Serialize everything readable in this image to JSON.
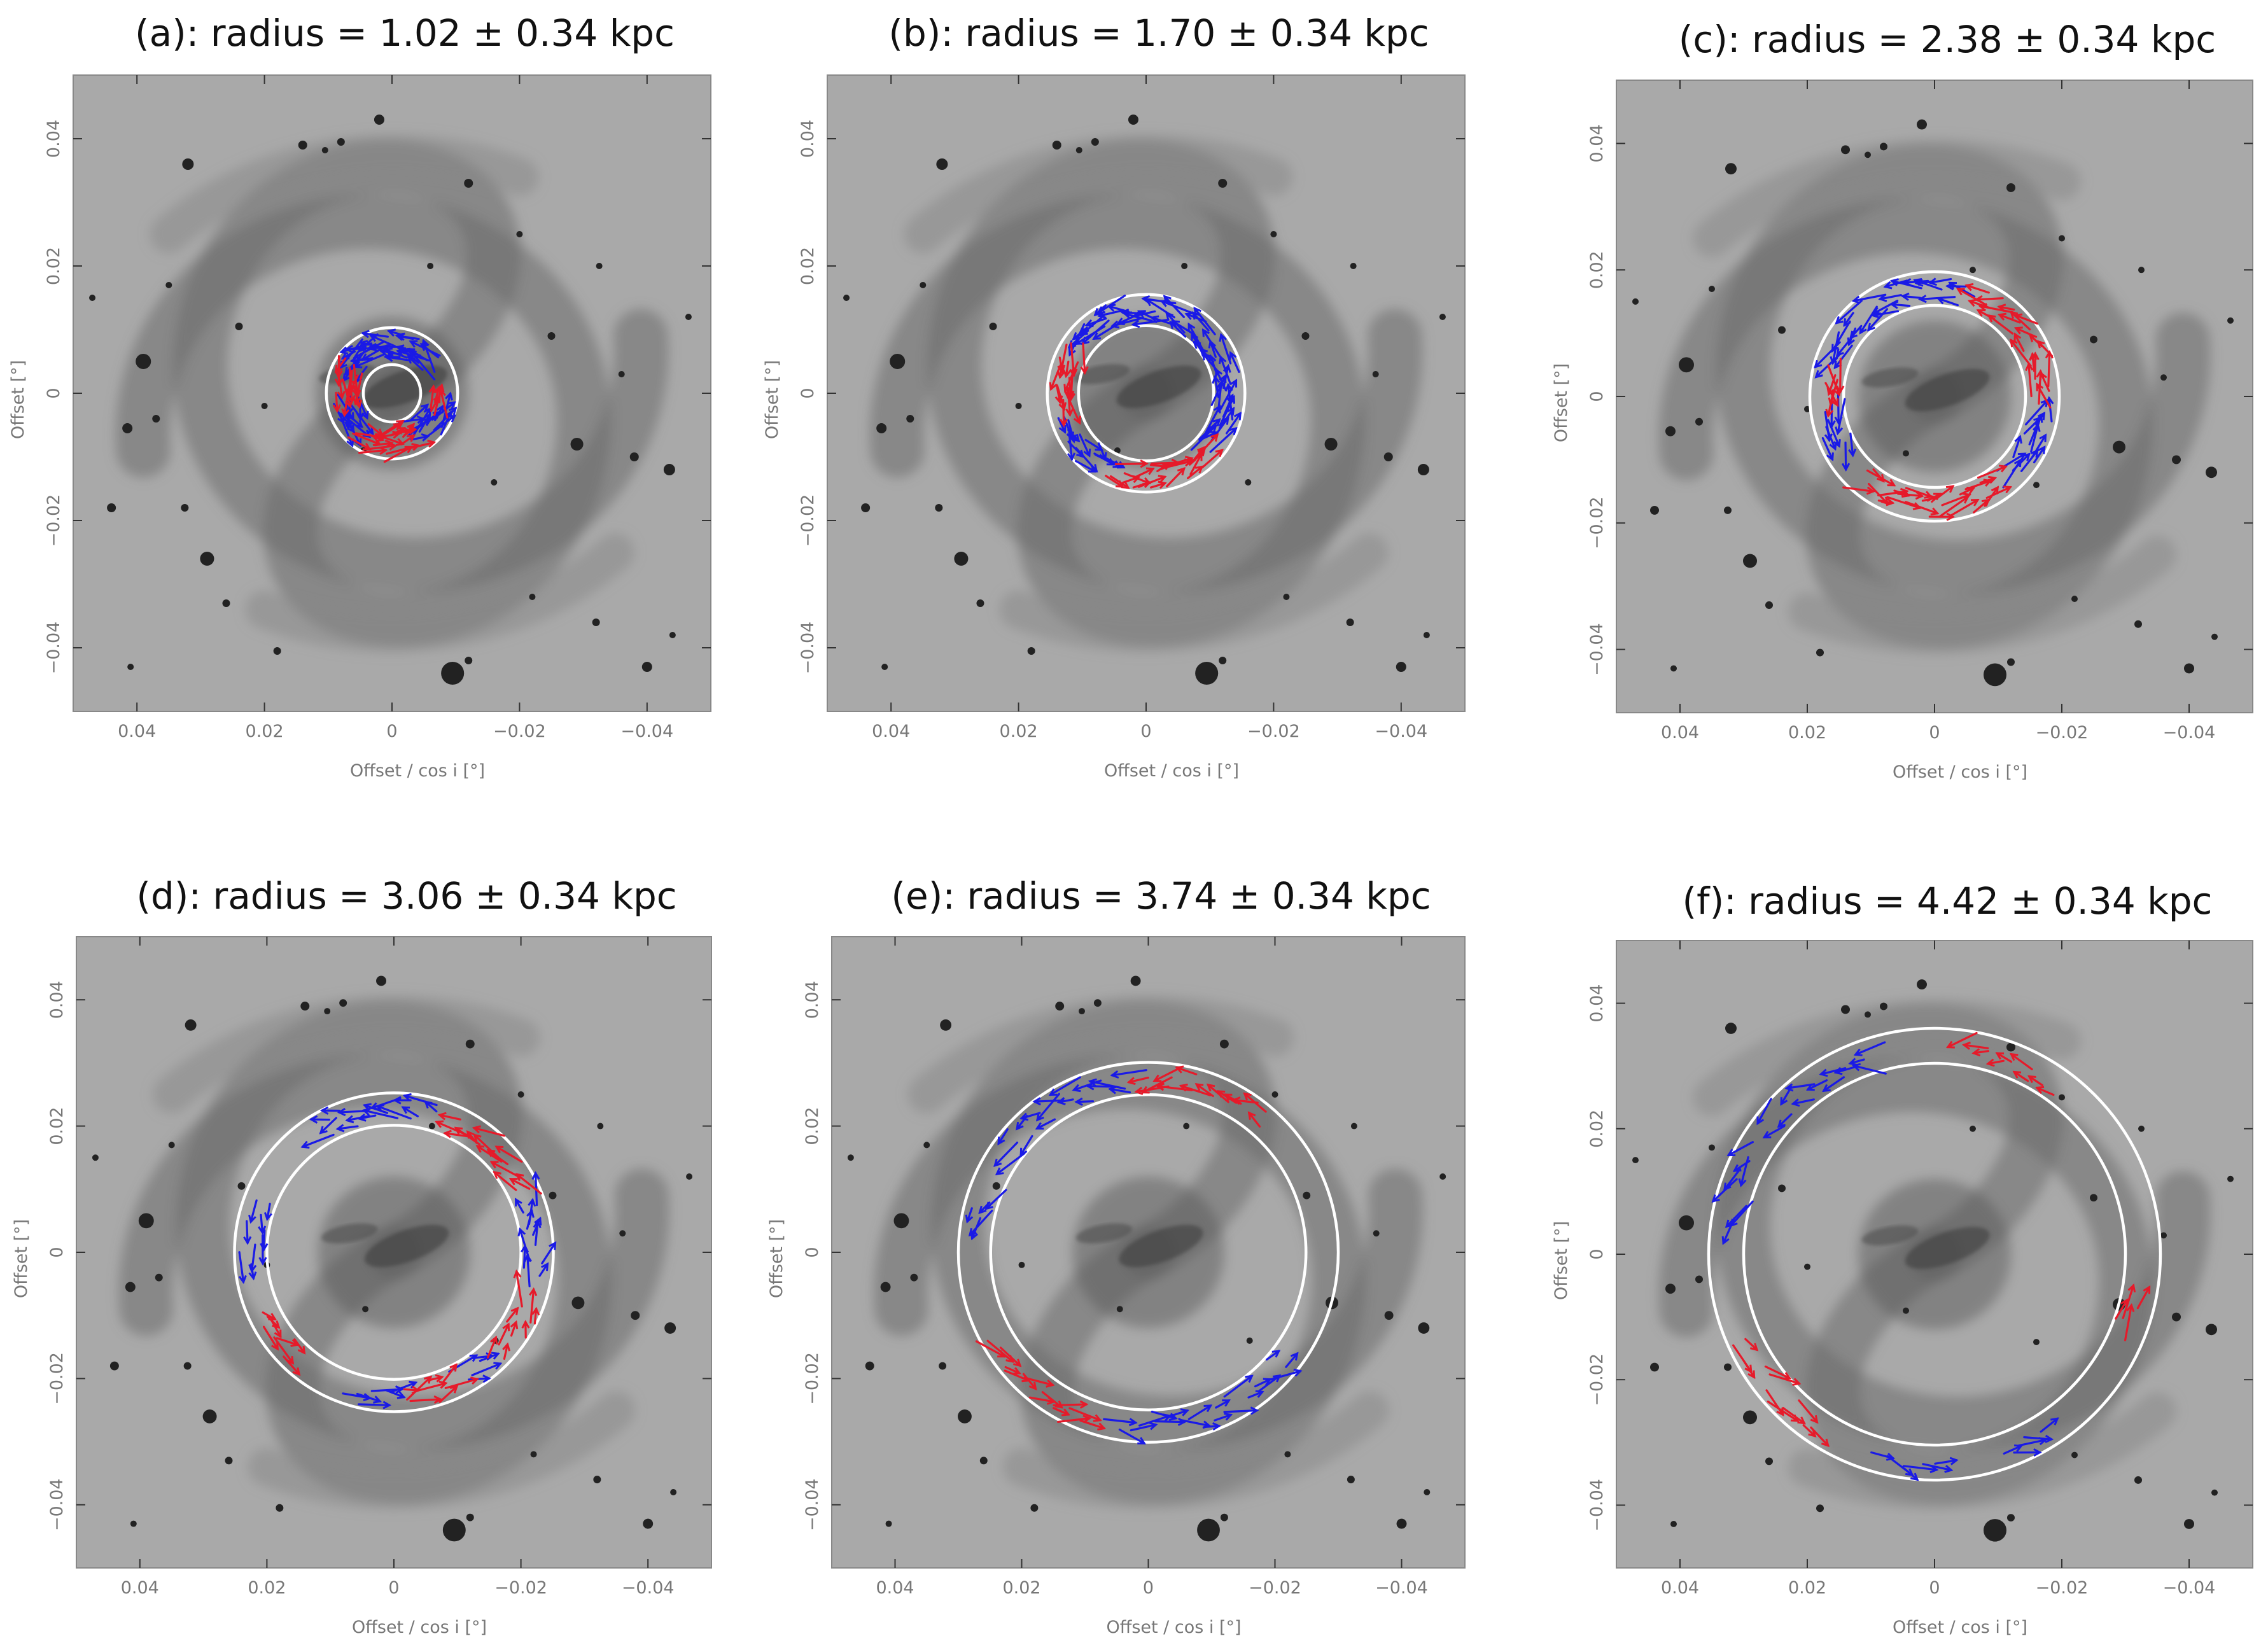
{
  "chart_data": [
    {
      "type": "scatter",
      "panel": "a",
      "title_parts": [
        "(a): radius =  ",
        "1.02",
        " ± ",
        "0.34",
        " kpc"
      ],
      "radius_kpc": 1.02,
      "radius_err_kpc": 0.34,
      "ring_inner_deg": 0.0045,
      "ring_outer_deg": 0.0103,
      "xlabel": "Offset / cos  i  [°]",
      "ylabel": "Offset [°]",
      "xlim": [
        0.05,
        -0.05
      ],
      "ylim": [
        -0.05,
        0.05
      ],
      "xticks": [
        "0.04",
        "0.02",
        "0",
        "−0.02",
        "−0.04"
      ],
      "yticks": [
        "−0.04",
        "−0.02",
        "0",
        "0.02",
        "0.04"
      ],
      "series": [
        {
          "color": "#1a1ae6",
          "arcs_deg": [
            [
              40,
              150
            ],
            [
              190,
              230
            ],
            [
              300,
              345
            ]
          ]
        },
        {
          "color": "#e61a2a",
          "arcs_deg": [
            [
              150,
              190
            ],
            [
              235,
              300
            ],
            [
              345,
              360
            ]
          ]
        }
      ]
    },
    {
      "type": "scatter",
      "panel": "b",
      "title_parts": [
        "(b): radius =  ",
        "1.70",
        " ± ",
        "0.34",
        " kpc"
      ],
      "radius_kpc": 1.7,
      "radius_err_kpc": 0.34,
      "ring_inner_deg": 0.0106,
      "ring_outer_deg": 0.0155,
      "xlabel": "Offset / cos  i  [°]",
      "ylabel": "Offset [°]",
      "xlim": [
        0.05,
        -0.05
      ],
      "ylim": [
        -0.05,
        0.05
      ],
      "xticks": [
        "0.04",
        "0.02",
        "0",
        "−0.02",
        "−0.04"
      ],
      "yticks": [
        "−0.04",
        "−0.02",
        "0",
        "0.02",
        "0.04"
      ],
      "series": [
        {
          "color": "#1a1ae6",
          "arcs_deg": [
            [
              -40,
              145
            ],
            [
              200,
              245
            ]
          ]
        },
        {
          "color": "#e61a2a",
          "arcs_deg": [
            [
              150,
              195
            ],
            [
              250,
              320
            ]
          ]
        }
      ]
    },
    {
      "type": "scatter",
      "panel": "c",
      "title_parts": [
        "(c): radius =  ",
        "2.38",
        " ± ",
        "0.34",
        " kpc"
      ],
      "radius_kpc": 2.38,
      "radius_err_kpc": 0.34,
      "ring_inner_deg": 0.0143,
      "ring_outer_deg": 0.0196,
      "xlabel": "Offset / cos  i  [°]",
      "ylabel": "Offset [°]",
      "xlim": [
        0.05,
        -0.05
      ],
      "ylim": [
        -0.05,
        0.05
      ],
      "xticks": [
        "0.04",
        "0.02",
        "0",
        "−0.02",
        "−0.04"
      ],
      "yticks": [
        "−0.04",
        "−0.02",
        "0",
        "0.02",
        "0.04"
      ],
      "series": [
        {
          "color": "#1a1ae6",
          "arcs_deg": [
            [
              75,
              165
            ],
            [
              185,
              215
            ],
            [
              315,
              355
            ]
          ]
        },
        {
          "color": "#e61a2a",
          "arcs_deg": [
            [
              0,
              72
            ],
            [
              165,
              185
            ],
            [
              230,
              310
            ]
          ]
        }
      ]
    },
    {
      "type": "scatter",
      "panel": "d",
      "title_parts": [
        "(d): radius =  ",
        "3.06",
        " ± ",
        "0.34",
        " kpc"
      ],
      "radius_kpc": 3.06,
      "radius_err_kpc": 0.34,
      "ring_inner_deg": 0.02,
      "ring_outer_deg": 0.0251,
      "xlabel": "Offset / cos  i  [°]",
      "ylabel": "Offset [°]",
      "xlim": [
        0.05,
        -0.05
      ],
      "ylim": [
        -0.05,
        0.05
      ],
      "xticks": [
        "0.04",
        "0.02",
        "0",
        "−0.02",
        "−0.04"
      ],
      "yticks": [
        "−0.04",
        "−0.02",
        "0",
        "0.02",
        "0.04"
      ],
      "series": [
        {
          "color": "#1a1ae6",
          "arcs_deg": [
            [
              -10,
              25
            ],
            [
              75,
              125
            ],
            [
              160,
              190
            ],
            [
              255,
              275
            ],
            [
              300,
              315
            ]
          ]
        },
        {
          "color": "#e61a2a",
          "arcs_deg": [
            [
              25,
              70
            ],
            [
              205,
              230
            ],
            [
              275,
              300
            ],
            [
              315,
              345
            ]
          ]
        }
      ]
    },
    {
      "type": "scatter",
      "panel": "e",
      "title_parts": [
        "(e): radius =  ",
        "3.74",
        " ± ",
        "0.34",
        " kpc"
      ],
      "radius_kpc": 3.74,
      "radius_err_kpc": 0.34,
      "ring_inner_deg": 0.0249,
      "ring_outer_deg": 0.03,
      "xlabel": "Offset / cos  i  [°]",
      "ylabel": "Offset [°]",
      "xlim": [
        0.05,
        -0.05
      ],
      "ylim": [
        -0.05,
        0.05
      ],
      "xticks": [
        "0.04",
        "0.02",
        "0",
        "−0.02",
        "−0.04"
      ],
      "yticks": [
        "−0.04",
        "−0.02",
        "0",
        "0.02",
        "0.04"
      ],
      "series": [
        {
          "color": "#1a1ae6",
          "arcs_deg": [
            [
              95,
              150
            ],
            [
              160,
              175
            ],
            [
              260,
              325
            ]
          ]
        },
        {
          "color": "#e61a2a",
          "arcs_deg": [
            [
              50,
              95
            ],
            [
              210,
              255
            ]
          ]
        }
      ]
    },
    {
      "type": "scatter",
      "panel": "f",
      "title_parts": [
        "(f): radius =  ",
        "4.42",
        " ± ",
        "0.34",
        " kpc"
      ],
      "radius_kpc": 4.42,
      "radius_err_kpc": 0.34,
      "ring_inner_deg": 0.03,
      "ring_outer_deg": 0.0355,
      "xlabel": "Offset / cos  i  [°]",
      "ylabel": "Offset [°]",
      "xlim": [
        0.05,
        -0.05
      ],
      "ylim": [
        -0.05,
        0.05
      ],
      "xticks": [
        "0.04",
        "0.02",
        "0",
        "−0.02",
        "−0.04"
      ],
      "yticks": [
        "−0.04",
        "−0.02",
        "0",
        "0.02",
        "0.04"
      ],
      "series": [
        {
          "color": "#1a1ae6",
          "arcs_deg": [
            [
              105,
              145
            ],
            [
              150,
              175
            ],
            [
              255,
              275
            ],
            [
              290,
              305
            ]
          ]
        },
        {
          "color": "#e61a2a",
          "arcs_deg": [
            [
              55,
              85
            ],
            [
              205,
              240
            ],
            [
              340,
              350
            ]
          ]
        }
      ]
    }
  ]
}
